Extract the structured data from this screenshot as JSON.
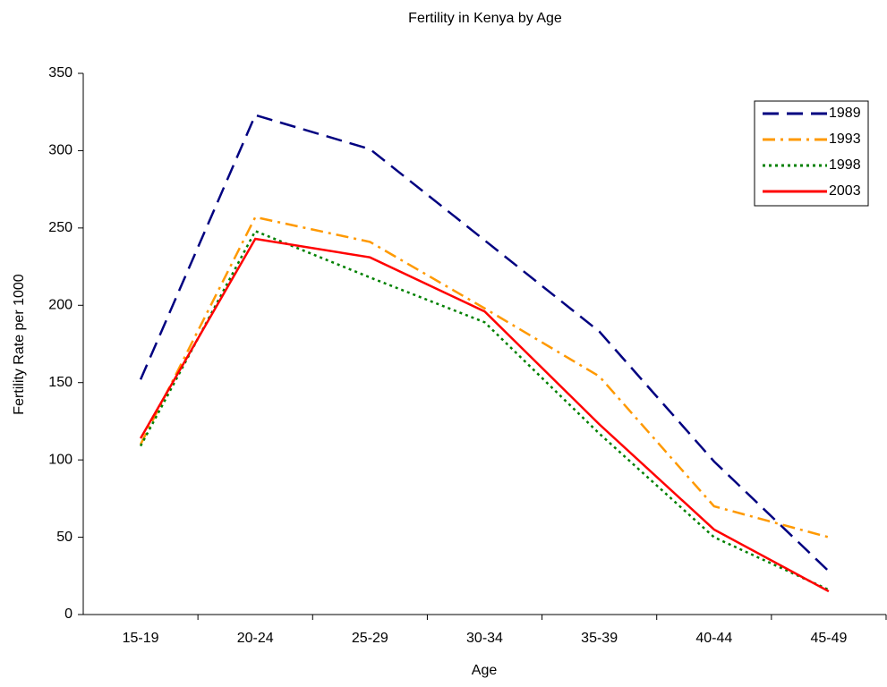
{
  "chart_data": {
    "type": "line",
    "title": "Fertility in Kenya by Age",
    "x_label": "Age",
    "y_label": "Fertility Rate per 1000",
    "categories": [
      "15-19",
      "20-24",
      "25-29",
      "30-34",
      "35-39",
      "40-44",
      "45-49"
    ],
    "series": [
      {
        "name": "1989",
        "color": "#000080",
        "dash": "dashed",
        "values": [
          152,
          323,
          301,
          242,
          183,
          99,
          28
        ]
      },
      {
        "name": "1993",
        "color": "#ff9900",
        "dash": "dashdot",
        "values": [
          110,
          257,
          241,
          198,
          154,
          70,
          50
        ]
      },
      {
        "name": "1998",
        "color": "#008000",
        "dash": "dotted",
        "values": [
          109,
          248,
          218,
          189,
          117,
          50,
          16
        ]
      },
      {
        "name": "2003",
        "color": "#ff0000",
        "dash": "solid",
        "values": [
          114,
          243,
          231,
          196,
          123,
          55,
          15
        ]
      }
    ],
    "ylim": [
      0,
      350
    ],
    "yticks": [
      0,
      50,
      100,
      150,
      200,
      250,
      300,
      350
    ],
    "grid": false,
    "legend": "top-right"
  }
}
